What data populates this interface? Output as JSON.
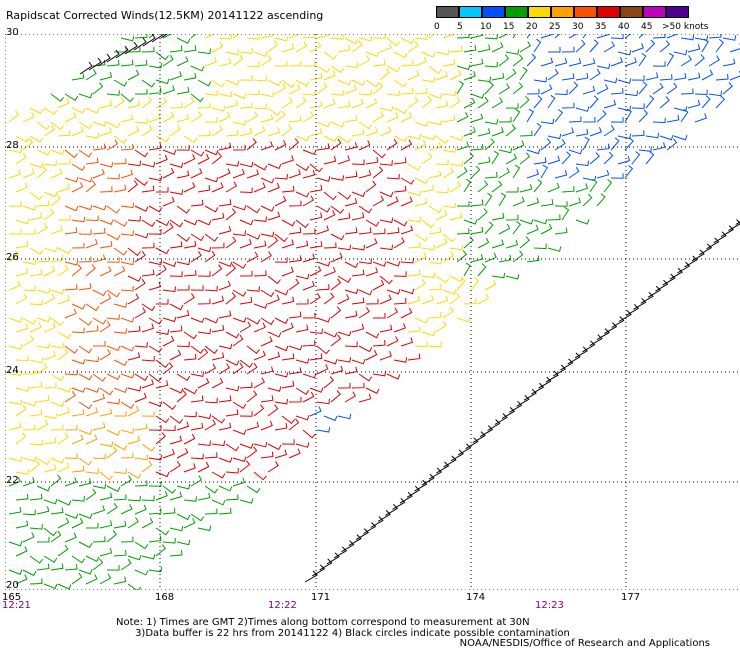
{
  "title": "Rapidscat Corrected Winds(12.5KM) 20141122 ascending",
  "legend": {
    "unit_label": ">50 knots",
    "bins": [
      {
        "label": "0",
        "color": "#555555"
      },
      {
        "label": "5",
        "color": "#00c8ff"
      },
      {
        "label": "10",
        "color": "#0050ff"
      },
      {
        "label": "15",
        "color": "#00a000"
      },
      {
        "label": "20",
        "color": "#ffd800"
      },
      {
        "label": "25",
        "color": "#ffa000"
      },
      {
        "label": "30",
        "color": "#ff5000"
      },
      {
        "label": "35",
        "color": "#e00000"
      },
      {
        "label": "40",
        "color": "#8b4513"
      },
      {
        "label": "45",
        "color": "#c000c0"
      },
      {
        "label": ">50",
        "color": "#500090"
      }
    ]
  },
  "axes": {
    "lat_labels": [
      "30",
      "28",
      "26",
      "24",
      "22",
      "20"
    ],
    "lon_labels": [
      "165",
      "168",
      "171",
      "174",
      "177"
    ],
    "time_labels": [
      "12:21",
      "12:22",
      "12:23"
    ]
  },
  "notes": "Note: 1) Times are GMT 2)Times along bottom correspond to measurement at 30N\n      3)Data buffer is 22 hrs from 20141122 4) Black circles indicate possible contamination",
  "credit": "NOAA/NESDIS/Office of Research and Applications",
  "colors": {
    "grid": "#000000",
    "time_label": "#800080",
    "wind_bands": [
      "#00a000",
      "#ffd800",
      "#ffa000",
      "#ff5000",
      "#e00000",
      "#0050ff"
    ]
  }
}
